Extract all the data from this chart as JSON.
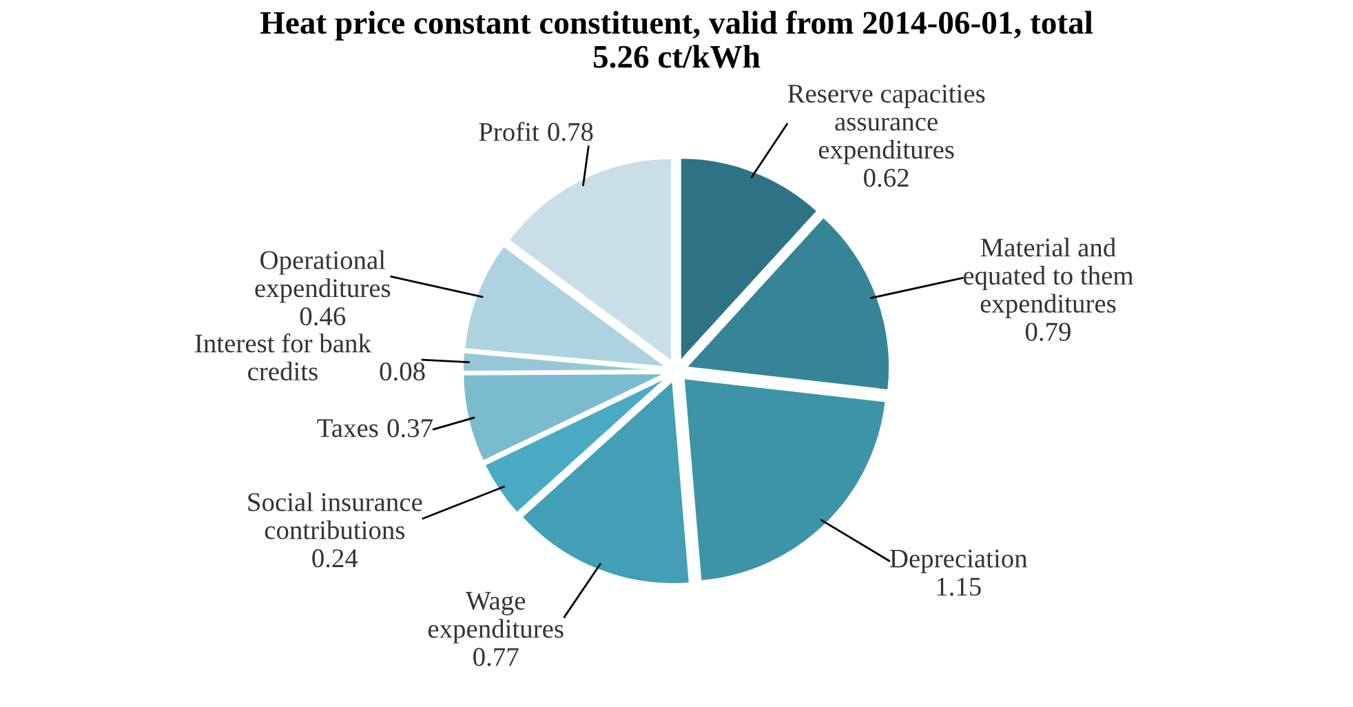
{
  "chart_data": {
    "type": "pie",
    "title": "Heat price constant constituent, valid from 2014-06-01, total\n5.26 ct/kWh",
    "categories": [
      "Reserve capacities\nassurance\nexpenditures",
      "Material and\nequated to them\nexpenditures",
      "Depreciation",
      "Wage\nexpenditures",
      "Social insurance\ncontributions",
      "Taxes",
      "Interest for bank\ncredits",
      "Operational\nexpenditures",
      "Profit"
    ],
    "values": [
      0.62,
      0.79,
      1.15,
      0.77,
      0.24,
      0.37,
      0.08,
      0.46,
      0.78
    ],
    "colors": [
      "#2e7385",
      "#358597",
      "#3d94a9",
      "#429fb5",
      "#4aaac4",
      "#7bbbd0",
      "#96c7d8",
      "#aed3e0",
      "#c9dfe8"
    ],
    "data_labels": true,
    "legend": false
  }
}
